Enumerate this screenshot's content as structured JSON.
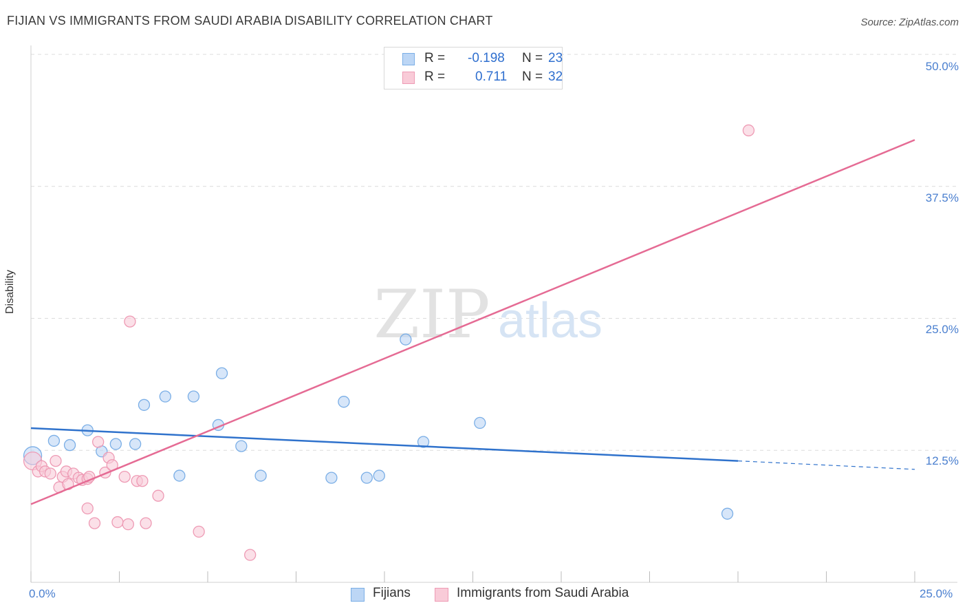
{
  "chart_data": {
    "type": "scatter",
    "title": "FIJIAN VS IMMIGRANTS FROM SAUDI ARABIA DISABILITY CORRELATION CHART",
    "source": "Source: ZipAtlas.com",
    "xlabel": "",
    "ylabel": "Disability",
    "xlim": [
      0,
      25
    ],
    "ylim": [
      0,
      50
    ],
    "x_tick_labels": [
      "0.0%",
      "25.0%"
    ],
    "y_tick_labels": [
      "50.0%",
      "37.5%",
      "25.0%",
      "12.5%"
    ],
    "y_tick_values": [
      50,
      37.5,
      25,
      12.5
    ],
    "watermark": {
      "zip": "ZIP",
      "atlas": "atlas"
    },
    "series": [
      {
        "name": "Fijians",
        "color": "#7aaee6",
        "fill": "#bcd6f5",
        "line_color": "#2f72cc",
        "R": "-0.198",
        "N": "23",
        "trend": {
          "x0": 0,
          "y0": 14.6,
          "x1": 20,
          "y1": 11.5,
          "dash_to_x": 25,
          "dash_to_y": 10.7
        },
        "points": [
          [
            0.05,
            12.0
          ],
          [
            0.65,
            13.4
          ],
          [
            1.1,
            13.0
          ],
          [
            1.6,
            14.4
          ],
          [
            2.0,
            12.4
          ],
          [
            2.4,
            13.1
          ],
          [
            2.95,
            13.1
          ],
          [
            3.2,
            16.8
          ],
          [
            3.8,
            17.6
          ],
          [
            4.2,
            10.1
          ],
          [
            4.6,
            17.6
          ],
          [
            5.3,
            14.9
          ],
          [
            5.4,
            19.8
          ],
          [
            5.95,
            12.9
          ],
          [
            6.5,
            10.1
          ],
          [
            8.5,
            9.9
          ],
          [
            8.85,
            17.1
          ],
          [
            9.5,
            9.9
          ],
          [
            9.85,
            10.1
          ],
          [
            10.6,
            23.0
          ],
          [
            11.1,
            13.3
          ],
          [
            12.7,
            15.1
          ],
          [
            19.7,
            6.5
          ]
        ]
      },
      {
        "name": "Immigrants from Saudi Arabia",
        "color": "#ee9ab4",
        "fill": "#f9cbd8",
        "line_color": "#e56b94",
        "R": "0.711",
        "N": "32",
        "trend": {
          "x0": 0,
          "y0": 7.4,
          "x1": 25,
          "y1": 41.9
        },
        "points": [
          [
            0.05,
            11.5
          ],
          [
            0.2,
            10.5
          ],
          [
            0.3,
            11.0
          ],
          [
            0.4,
            10.5
          ],
          [
            0.55,
            10.3
          ],
          [
            0.7,
            11.5
          ],
          [
            0.8,
            9.0
          ],
          [
            0.9,
            10.0
          ],
          [
            1.0,
            10.5
          ],
          [
            1.05,
            9.3
          ],
          [
            1.2,
            10.3
          ],
          [
            1.35,
            9.9
          ],
          [
            1.45,
            9.7
          ],
          [
            1.6,
            9.8
          ],
          [
            1.6,
            7.0
          ],
          [
            1.65,
            10.0
          ],
          [
            1.8,
            5.6
          ],
          [
            1.9,
            13.3
          ],
          [
            2.1,
            10.4
          ],
          [
            2.2,
            11.8
          ],
          [
            2.3,
            11.1
          ],
          [
            2.45,
            5.7
          ],
          [
            2.65,
            10.0
          ],
          [
            2.75,
            5.5
          ],
          [
            2.8,
            24.7
          ],
          [
            3.0,
            9.6
          ],
          [
            3.15,
            9.6
          ],
          [
            3.25,
            5.6
          ],
          [
            3.6,
            8.2
          ],
          [
            4.75,
            4.8
          ],
          [
            6.2,
            2.6
          ],
          [
            20.3,
            42.8
          ]
        ]
      }
    ]
  },
  "legend_labels": {
    "r": "R =",
    "n": "N ="
  },
  "bottom_legend": [
    "Fijians",
    "Immigrants from Saudi Arabia"
  ]
}
